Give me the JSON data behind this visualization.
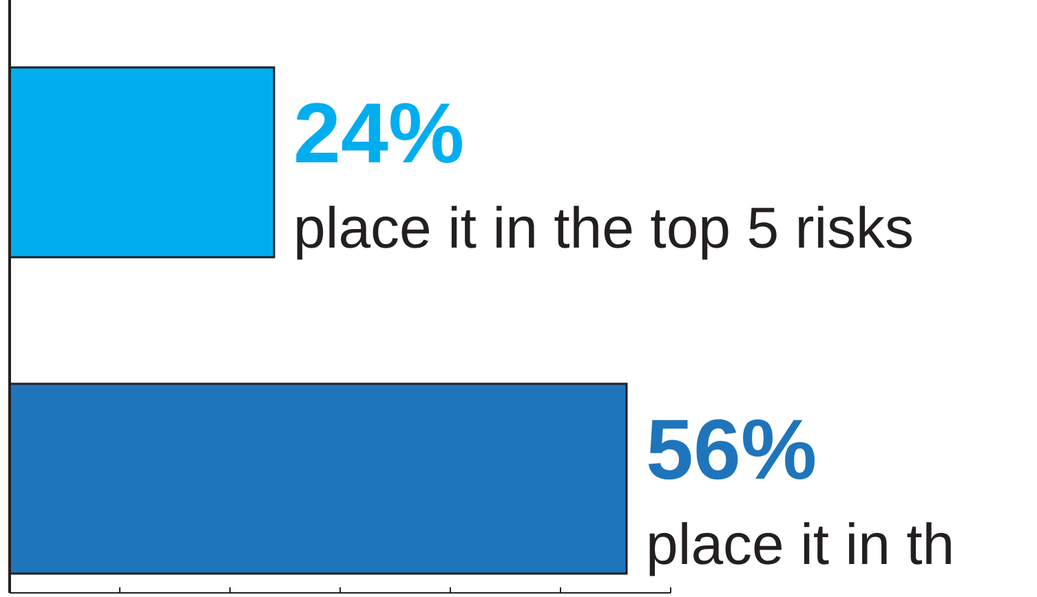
{
  "chart_data": {
    "type": "bar",
    "orientation": "horizontal",
    "categories": [
      null,
      null
    ],
    "values": [
      24,
      56
    ],
    "colors": [
      "#00aeef",
      "#1f75bb"
    ],
    "value_labels": [
      "24%",
      "56%"
    ],
    "annotations": [
      "place it in the top 5 risks",
      "place it in th"
    ],
    "xlim": [
      0,
      60
    ],
    "xticks": [
      {
        "value": 0,
        "label": null
      },
      {
        "value": 10,
        "label": null
      },
      {
        "value": 20,
        "label": null
      },
      {
        "value": 30,
        "label": null
      },
      {
        "value": 40,
        "label": null
      },
      {
        "value": 50,
        "label": null
      },
      {
        "value": 60,
        "label": null
      }
    ],
    "grid": false
  }
}
